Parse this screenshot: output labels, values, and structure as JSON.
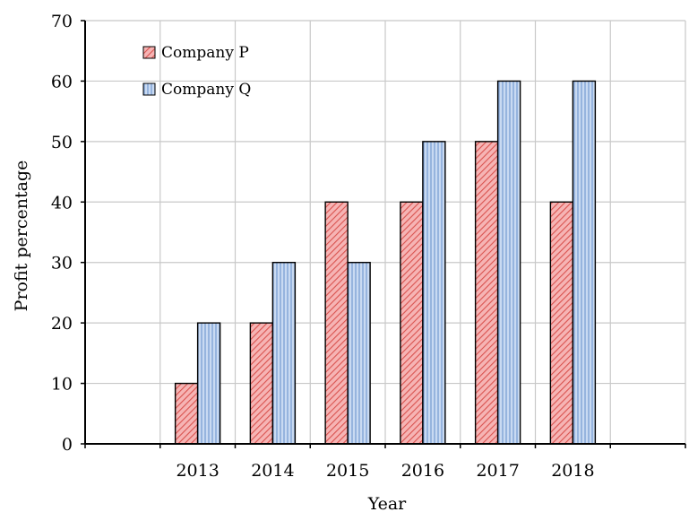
{
  "chart_data": {
    "type": "bar",
    "title": "",
    "xlabel": "Year",
    "ylabel": "Profit percentage",
    "categories": [
      "2013",
      "2014",
      "2015",
      "2016",
      "2017",
      "2018"
    ],
    "ylim": [
      0,
      70
    ],
    "yticks": [
      0,
      10,
      20,
      30,
      40,
      50,
      60,
      70
    ],
    "grid": true,
    "legend_position": "top-left",
    "series": [
      {
        "name": "Company P",
        "values": [
          10,
          20,
          40,
          40,
          50,
          40
        ],
        "color": "#f08080",
        "pattern": "diagonal-hatch"
      },
      {
        "name": "Company Q",
        "values": [
          20,
          30,
          30,
          50,
          60,
          60
        ],
        "color": "#a9c4eb",
        "pattern": "vertical-lines"
      }
    ]
  }
}
